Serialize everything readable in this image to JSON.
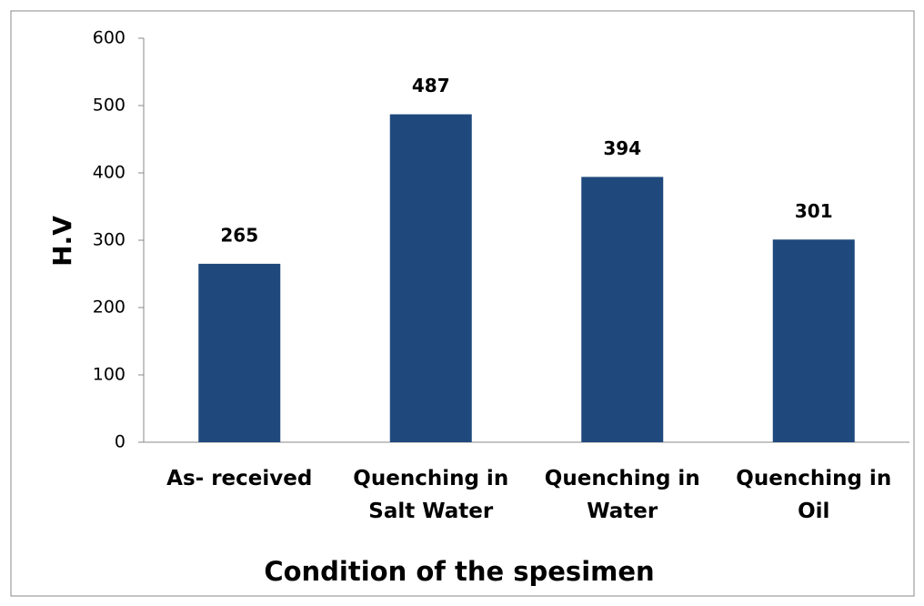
{
  "chart_data": {
    "type": "bar",
    "title": null,
    "x_label": "Condition of the spesimen",
    "y_label": "H.V",
    "categories": [
      "As- received",
      "Quenching in Salt Water",
      "Quenching in Water",
      "Quenching in Oil"
    ],
    "values": [
      265,
      487,
      394,
      301
    ],
    "color": "#1f497d",
    "ylim": [
      0,
      600
    ],
    "yticks": [
      0,
      100,
      200,
      300,
      400,
      500,
      600
    ],
    "grid": false
  }
}
